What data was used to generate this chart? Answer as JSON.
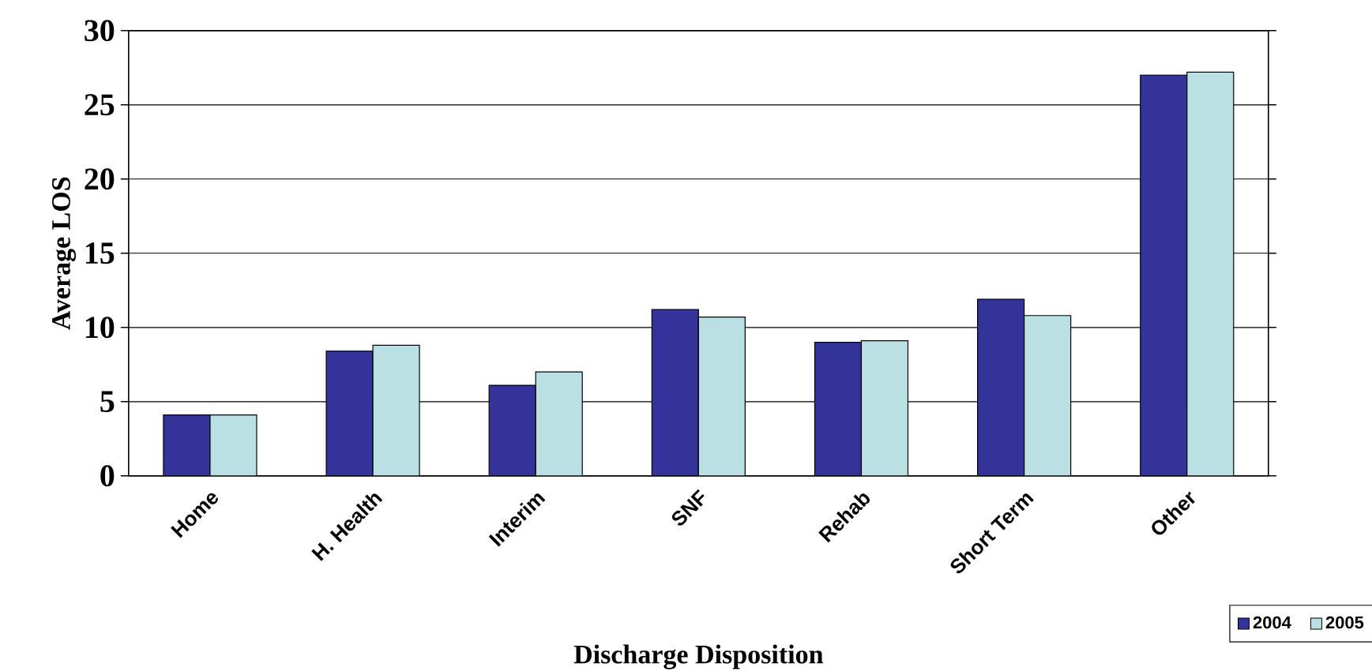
{
  "chart_data": {
    "type": "bar",
    "xlabel": "Discharge Disposition",
    "ylabel": "Average LOS",
    "categories": [
      "Home",
      "H. Health",
      "Interim",
      "SNF",
      "Rehab",
      "Short Term",
      "Other"
    ],
    "series": [
      {
        "name": "2004",
        "color": "#333399",
        "values": [
          4.1,
          8.4,
          6.1,
          11.2,
          9.0,
          11.9,
          27.0
        ]
      },
      {
        "name": "2005",
        "color": "#bbe0e3",
        "values": [
          4.1,
          8.8,
          7.0,
          10.7,
          9.1,
          10.8,
          27.2
        ]
      }
    ],
    "ylim": [
      0,
      30
    ],
    "yticks": [
      0,
      5,
      10,
      15,
      20,
      25,
      30
    ],
    "grid": "y",
    "legend": "bottom right"
  }
}
